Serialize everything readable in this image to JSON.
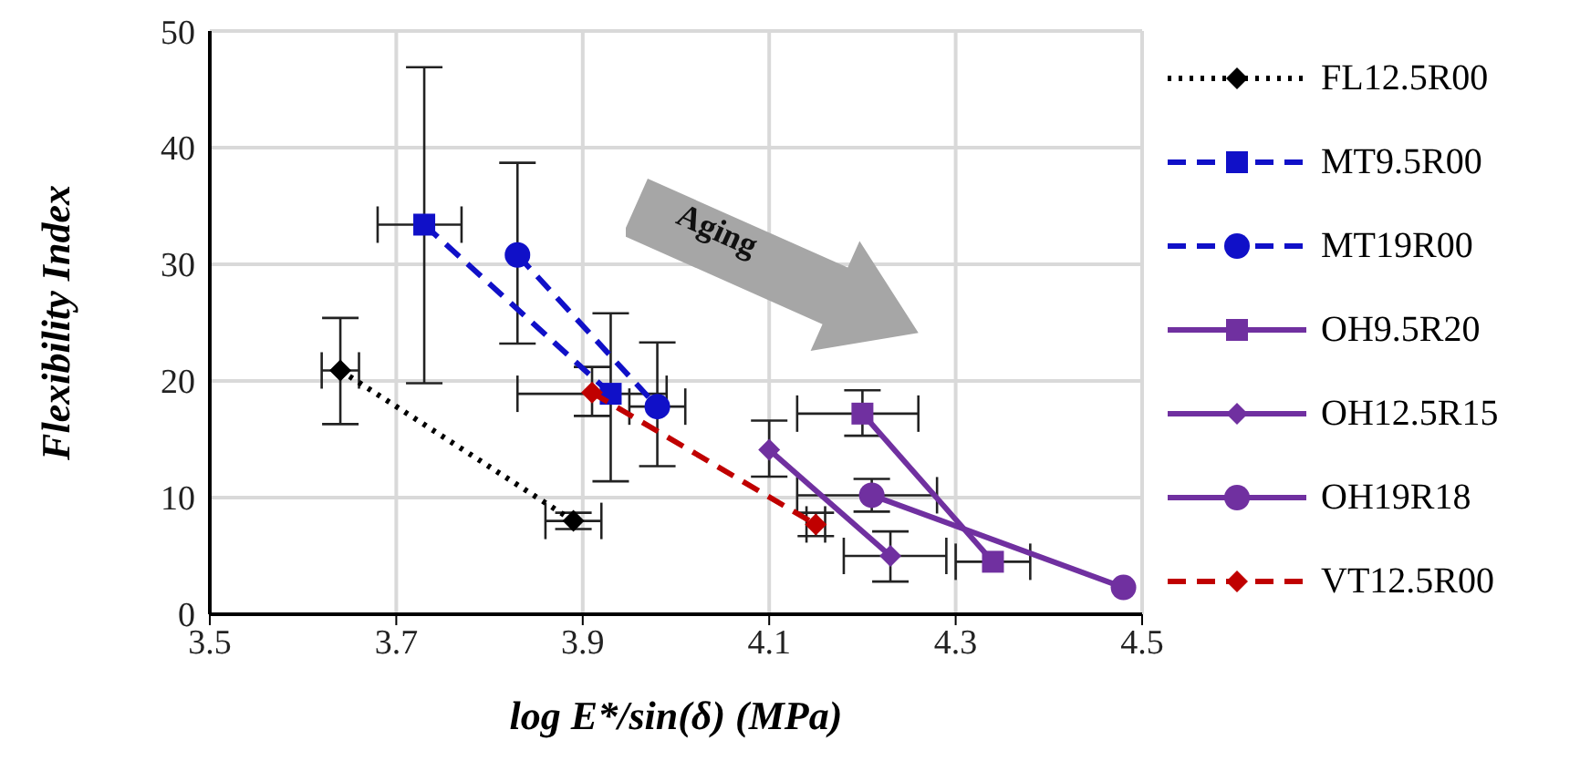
{
  "chart_data": {
    "type": "line",
    "xlabel": "log E*/sin(δ) (MPa)",
    "ylabel": "Flexibility Index",
    "xlim": [
      3.5,
      4.5
    ],
    "xticks": [
      {
        "value": 3.5,
        "label": "3.5"
      },
      {
        "value": 3.7,
        "label": "3.7"
      },
      {
        "value": 3.9,
        "label": "3.9"
      },
      {
        "value": 4.1,
        "label": "4.1"
      },
      {
        "value": 4.3,
        "label": "4.3"
      },
      {
        "value": 4.5,
        "label": "4.5"
      }
    ],
    "ylim": [
      0,
      50
    ],
    "yticks": [
      0,
      10,
      20,
      30,
      40,
      50
    ],
    "grid": true,
    "legend": "right",
    "annotations": [
      "Aging"
    ],
    "series": [
      {
        "name": "FL12.5R00",
        "color": "#000000",
        "marker": "diamond",
        "line_style": "dotted",
        "x": [
          3.64,
          3.89
        ],
        "values": [
          20.9,
          8.0
        ],
        "errors": [
          [
            16.3,
            25.4
          ],
          0.7
        ],
        "xerrors": [
          0.02,
          0.03
        ]
      },
      {
        "name": "MT9.5R00",
        "color": "#1010c8",
        "marker": "square",
        "line_style": "dashed",
        "x": [
          3.73,
          3.93
        ],
        "values": [
          33.4,
          18.9
        ],
        "errors": [
          [
            19.8,
            46.9
          ],
          [
            11.4,
            25.8
          ]
        ],
        "xerrors": [
          [
            3.68,
            3.77
          ],
          [
            3.83,
            3.99
          ]
        ]
      },
      {
        "name": "MT19R00",
        "color": "#1010c8",
        "marker": "circle",
        "line_style": "dashed",
        "x": [
          3.83,
          3.98
        ],
        "values": [
          30.8,
          17.8
        ],
        "errors": [
          [
            23.2,
            38.7
          ],
          [
            12.7,
            23.3
          ]
        ],
        "xerrors": [
          null,
          0.03
        ]
      },
      {
        "name": "OH9.5R20",
        "color": "#7030a0",
        "marker": "square",
        "line_style": "solid",
        "x": [
          4.2,
          4.34
        ],
        "values": [
          17.2,
          4.5
        ],
        "errors": [
          [
            15.3,
            19.2
          ],
          null
        ],
        "xerrors": [
          [
            4.13,
            4.26
          ],
          [
            4.3,
            4.38
          ]
        ]
      },
      {
        "name": "OH12.5R15",
        "color": "#7030a0",
        "marker": "diamond",
        "line_style": "solid",
        "x": [
          4.1,
          4.23
        ],
        "values": [
          14.1,
          5.0
        ],
        "errors": [
          [
            11.8,
            16.6
          ],
          [
            2.8,
            7.1
          ]
        ],
        "xerrors": [
          null,
          [
            4.18,
            4.29
          ]
        ]
      },
      {
        "name": "OH19R18",
        "color": "#7030a0",
        "marker": "circle",
        "line_style": "solid",
        "x": [
          4.21,
          4.48
        ],
        "values": [
          10.2,
          2.3
        ],
        "errors": [
          1.4,
          null
        ],
        "xerrors": [
          [
            4.13,
            4.28
          ],
          null
        ]
      },
      {
        "name": "VT12.5R00",
        "color": "#c00000",
        "marker": "diamond",
        "line_style": "dashed",
        "x": [
          3.91,
          4.15
        ],
        "values": [
          19.0,
          7.7
        ],
        "errors": [
          [
            17.0,
            21.2
          ],
          1.0
        ],
        "xerrors": [
          null,
          0.01
        ]
      }
    ]
  }
}
